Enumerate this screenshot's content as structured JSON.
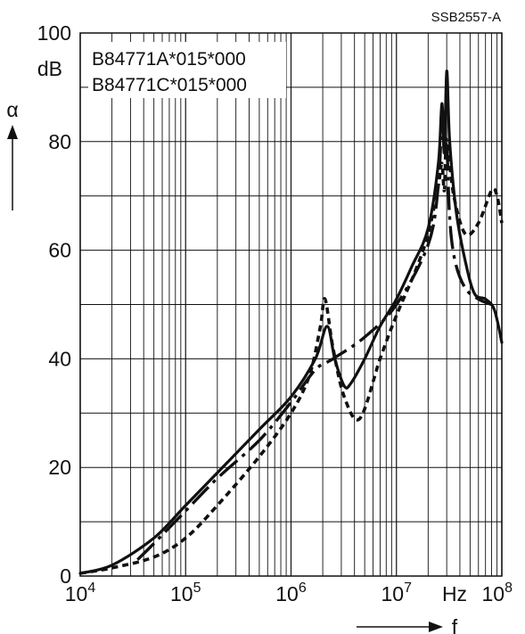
{
  "chart_data": {
    "type": "line",
    "figure_id": "SSB2557-A",
    "y_axis": {
      "symbol": "α",
      "unit": "dB",
      "ylim": [
        0,
        100
      ],
      "ticks": [
        "0",
        "20",
        "40",
        "60",
        "80",
        "100"
      ]
    },
    "x_axis": {
      "symbol": "f",
      "unit": "Hz",
      "scale": "log",
      "xlim": [
        10000,
        100000000
      ],
      "ticks": [
        {
          "base": "10",
          "exp": "4"
        },
        {
          "base": "10",
          "exp": "5"
        },
        {
          "base": "10",
          "exp": "6"
        },
        {
          "base": "10",
          "exp": "7"
        },
        {
          "base": "10",
          "exp": "8"
        }
      ]
    },
    "grid": true,
    "legend": [
      "B84771A*015*000",
      "B84771C*015*000"
    ],
    "series": [
      {
        "style": "solid",
        "x": [
          10000,
          20000,
          50000,
          100000,
          200000,
          500000,
          1000000,
          1700000,
          2200000,
          2600000,
          3200000,
          3700000,
          5000000,
          7000000,
          10000000,
          14000000,
          20000000,
          25000000,
          27000000,
          28500000,
          30000000,
          32000000,
          37000000,
          45000000,
          55000000,
          70000000,
          85000000,
          100000000
        ],
        "y": [
          0.5,
          2,
          7,
          13,
          19,
          27,
          33,
          40,
          46,
          40,
          35,
          35.5,
          40,
          46,
          51,
          57,
          64,
          76,
          87,
          78,
          93,
          80,
          67,
          58,
          52,
          51,
          49,
          43
        ]
      },
      {
        "style": "dash-dot",
        "x": [
          35000,
          50000,
          100000,
          200000,
          500000,
          1000000,
          1700000,
          2500000,
          5000000,
          10000000,
          20000000,
          25000000,
          27000000,
          28500000,
          30000000,
          32000000,
          36000000,
          45000000,
          60000000,
          80000000
        ],
        "y": [
          3,
          6,
          12,
          18,
          25,
          32,
          38,
          40,
          44,
          50,
          61,
          72,
          85,
          78,
          80,
          66,
          58,
          53,
          51,
          50
        ]
      },
      {
        "style": "dotted",
        "x": [
          10000,
          20000,
          50000,
          100000,
          200000,
          500000,
          1000000,
          1500000,
          1900000,
          2100000,
          2500000,
          3200000,
          4500000,
          7000000,
          10000000,
          15000000,
          20000000,
          25000000,
          27000000,
          28500000,
          30000000,
          35000000,
          45000000,
          60000000,
          80000000,
          90000000,
          100000000
        ],
        "y": [
          0.5,
          1.5,
          3.5,
          7,
          13,
          22,
          30,
          37,
          46,
          51,
          42,
          33,
          29,
          40,
          48,
          56,
          63,
          72,
          76,
          71,
          80,
          70,
          63,
          65,
          71,
          70,
          65
        ]
      }
    ]
  }
}
